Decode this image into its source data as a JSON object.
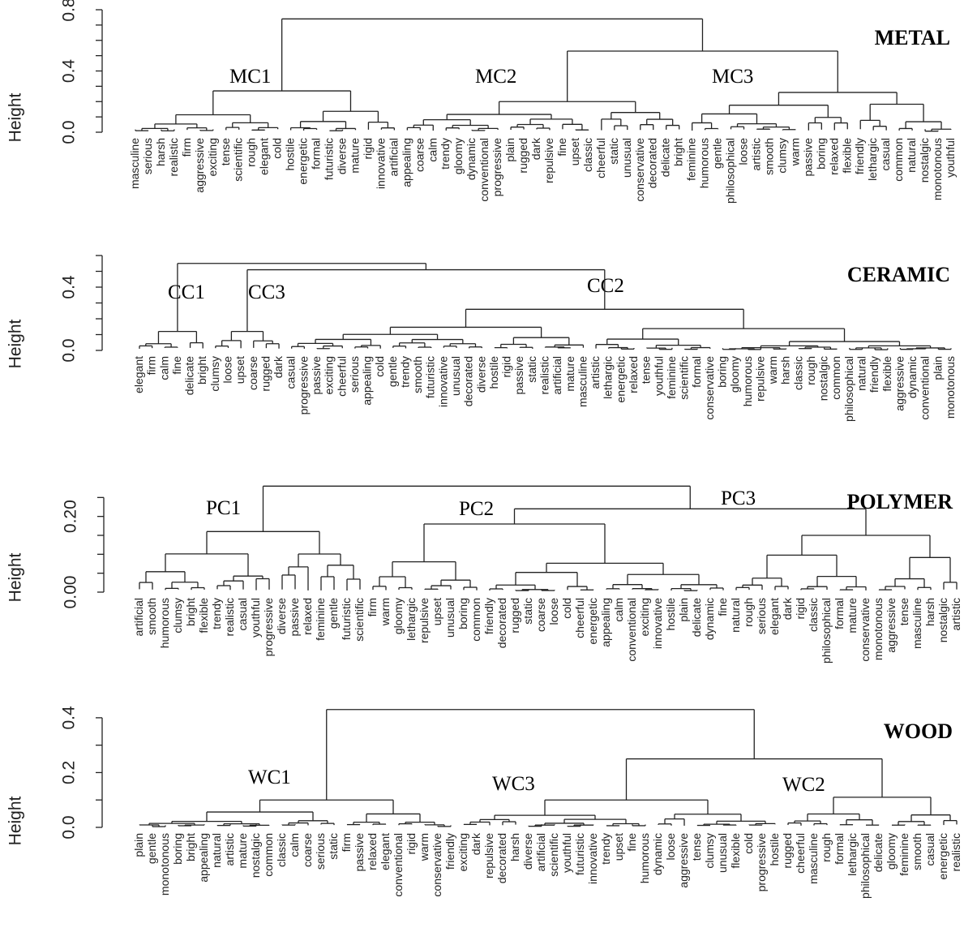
{
  "chart_data": [
    {
      "type": "dendrogram",
      "title": "METAL",
      "ylabel": "Height",
      "ylim": [
        0,
        0.8
      ],
      "yticks": [
        "0.0",
        "0.4",
        "0.8"
      ],
      "yticks_values": [
        0,
        0.4,
        0.8
      ],
      "ylim_minor": [
        0,
        0.1,
        0.2,
        0.3,
        0.4,
        0.5,
        0.6,
        0.7,
        0.8
      ],
      "leaves": [
        "masculine",
        "serious",
        "harsh",
        "realistic",
        "firm",
        "aggressive",
        "exciting",
        "tense",
        "scientific",
        "rough",
        "elegant",
        "cold",
        "hostile",
        "energetic",
        "formal",
        "futuristic",
        "diverse",
        "mature",
        "rigid",
        "innovative",
        "artificial",
        "appealing",
        "coarse",
        "calm",
        "trendy",
        "gloomy",
        "dynamic",
        "conventional",
        "progressive",
        "plain",
        "rugged",
        "dark",
        "repulsive",
        "fine",
        "upset",
        "classic",
        "cheerful",
        "static",
        "unusual",
        "conservative",
        "decorated",
        "delicate",
        "bright",
        "feminine",
        "humorous",
        "gentle",
        "philosophical",
        "loose",
        "artistic",
        "smooth",
        "clumsy",
        "warm",
        "passive",
        "boring",
        "relaxed",
        "flexible",
        "friendly",
        "lethargic",
        "casual",
        "common",
        "natural",
        "nostalgic",
        "monotonous",
        "youthful"
      ],
      "clusters": [
        {
          "label": "MC1",
          "range": [
            0,
            20
          ],
          "height": 0.27
        },
        {
          "label": "MC2",
          "range": [
            21,
            42
          ],
          "height": 0.2
        },
        {
          "label": "MC3",
          "range": [
            43,
            63
          ],
          "height": 0.26
        }
      ],
      "joins": [
        {
          "left": "MC2",
          "right": "MC3",
          "height": 0.53
        },
        {
          "left": "MC1",
          "right": "MC2+MC3",
          "height": 0.74
        }
      ]
    },
    {
      "type": "dendrogram",
      "title": "CERAMIC",
      "ylabel": "Height",
      "ylim": [
        0,
        0.6
      ],
      "yticks": [
        "0.0",
        "0.4"
      ],
      "yticks_values": [
        0,
        0.4
      ],
      "ylim_minor": [
        0,
        0.1,
        0.2,
        0.3,
        0.4,
        0.5,
        0.6
      ],
      "leaves": [
        "elegant",
        "firm",
        "calm",
        "fine",
        "delicate",
        "bright",
        "clumsy",
        "loose",
        "upset",
        "coarse",
        "rugged",
        "dark",
        "casual",
        "progressive",
        "passive",
        "exciting",
        "cheerful",
        "serious",
        "appealing",
        "cold",
        "gentle",
        "trendy",
        "smooth",
        "futuristic",
        "innovative",
        "unusual",
        "decorated",
        "diverse",
        "hostile",
        "rigid",
        "passive",
        "static",
        "realistic",
        "artificial",
        "mature",
        "masculine",
        "artistic",
        "lethargic",
        "energetic",
        "relaxed",
        "tense",
        "youthful",
        "feminine",
        "scientific",
        "formal",
        "conservative",
        "boring",
        "gloomy",
        "humorous",
        "repulsive",
        "warm",
        "harsh",
        "classic",
        "rough",
        "nostalgic",
        "common",
        "philosophical",
        "natural",
        "friendly",
        "flexible",
        "aggressive",
        "dynamic",
        "conventional",
        "plain",
        "monotonous"
      ],
      "clusters": [
        {
          "label": "CC1",
          "range": [
            0,
            5
          ],
          "height": 0.12
        },
        {
          "label": "CC3",
          "range": [
            6,
            11
          ],
          "height": 0.12
        },
        {
          "label": "CC2",
          "range": [
            12,
            64
          ],
          "height": 0.26
        }
      ],
      "joins": [
        {
          "left": "CC3",
          "right": "CC2",
          "height": 0.51
        },
        {
          "left": "CC1",
          "right": "CC3+CC2",
          "height": 0.55
        }
      ]
    },
    {
      "type": "dendrogram",
      "title": "POLYMER",
      "ylabel": "Height",
      "ylim": [
        0,
        0.3
      ],
      "yticks": [
        "0.00",
        "0.20"
      ],
      "yticks_values": [
        0,
        0.2
      ],
      "ylim_minor": [
        0,
        0.05,
        0.1,
        0.15,
        0.2,
        0.25
      ],
      "leaves": [
        "artificial",
        "smooth",
        "humorous",
        "clumsy",
        "bright",
        "flexible",
        "trendy",
        "realistic",
        "casual",
        "youthful",
        "progressive",
        "diverse",
        "passive",
        "relaxed",
        "feminine",
        "gentle",
        "futuristic",
        "scientific",
        "firm",
        "warm",
        "gloomy",
        "lethargic",
        "repulsive",
        "upset",
        "unusual",
        "boring",
        "common",
        "friendly",
        "decorated",
        "rugged",
        "static",
        "coarse",
        "loose",
        "cold",
        "cheerful",
        "energetic",
        "appealing",
        "calm",
        "conventional",
        "exciting",
        "innovative",
        "hostile",
        "plain",
        "delicate",
        "dynamic",
        "fine",
        "natural",
        "rough",
        "serious",
        "elegant",
        "dark",
        "rigid",
        "classic",
        "philosophical",
        "formal",
        "mature",
        "conservative",
        "monotonous",
        "aggressive",
        "tense",
        "masculine",
        "harsh",
        "nostalgic",
        "artistic"
      ],
      "clusters": [
        {
          "label": "PC1",
          "range": [
            0,
            17
          ],
          "height": 0.16
        },
        {
          "label": "PC2",
          "range": [
            18,
            45
          ],
          "height": 0.18
        },
        {
          "label": "PC3",
          "range": [
            46,
            63
          ],
          "height": 0.15
        }
      ],
      "joins": [
        {
          "left": "PC2",
          "right": "PC3",
          "height": 0.22
        },
        {
          "left": "PC1",
          "right": "PC2+PC3",
          "height": 0.28
        }
      ]
    },
    {
      "type": "dendrogram",
      "title": "WOOD",
      "ylabel": "Height",
      "ylim": [
        0,
        0.45
      ],
      "yticks": [
        "0.0",
        "0.2",
        "0.4"
      ],
      "yticks_values": [
        0,
        0.2,
        0.4
      ],
      "ylim_minor": [
        0,
        0.1,
        0.2,
        0.3,
        0.4
      ],
      "leaves": [
        "plain",
        "gentle",
        "monotonous",
        "boring",
        "bright",
        "appealing",
        "natural",
        "artistic",
        "mature",
        "nostalgic",
        "common",
        "classic",
        "calm",
        "coarse",
        "serious",
        "static",
        "firm",
        "passive",
        "relaxed",
        "elegant",
        "conventional",
        "rigid",
        "warm",
        "conservative",
        "friendly",
        "exciting",
        "dark",
        "repulsive",
        "decorated",
        "harsh",
        "diverse",
        "artificial",
        "scientific",
        "youthful",
        "futuristic",
        "innovative",
        "trendy",
        "upset",
        "fine",
        "humorous",
        "dynamic",
        "loose",
        "aggressive",
        "tense",
        "clumsy",
        "unusual",
        "flexible",
        "cold",
        "progressive",
        "hostile",
        "rugged",
        "cheerful",
        "masculine",
        "rough",
        "formal",
        "lethargic",
        "philosophical",
        "delicate",
        "gloomy",
        "feminine",
        "smooth",
        "casual",
        "energetic",
        "realistic"
      ],
      "clusters": [
        {
          "label": "WC1",
          "range": [
            0,
            24
          ],
          "height": 0.1
        },
        {
          "label": "WC3",
          "range": [
            25,
            49
          ],
          "height": 0.1
        },
        {
          "label": "WC2",
          "range": [
            50,
            63
          ],
          "height": 0.11
        }
      ],
      "joins": [
        {
          "left": "WC3",
          "right": "WC2",
          "height": 0.25
        },
        {
          "left": "WC1",
          "right": "WC3+WC2",
          "height": 0.43
        }
      ]
    }
  ]
}
